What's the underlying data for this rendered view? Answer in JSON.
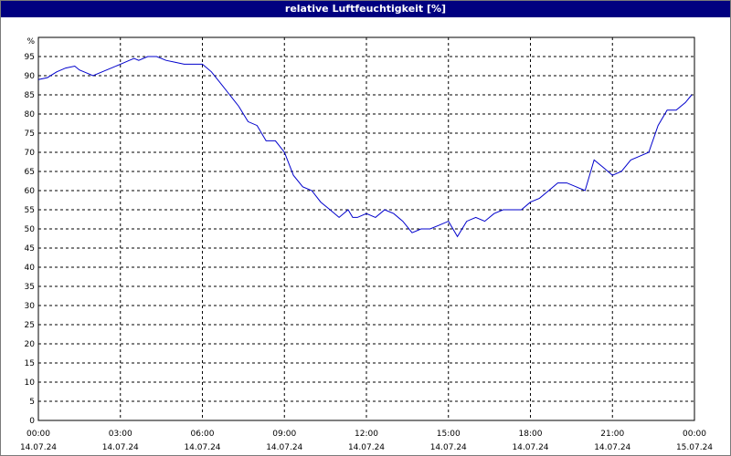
{
  "window": {
    "title": "relative Luftfeuchtigkeit [%]"
  },
  "chart_data": {
    "type": "line",
    "title": "relative Luftfeuchtigkeit [%]",
    "ylabel": "%",
    "xlabel": "",
    "ylim": [
      0,
      100
    ],
    "xlim": [
      0,
      24
    ],
    "grid": true,
    "y_ticks": [
      "0",
      "5",
      "10",
      "15",
      "20",
      "25",
      "30",
      "35",
      "40",
      "45",
      "50",
      "55",
      "60",
      "65",
      "70",
      "75",
      "80",
      "85",
      "90",
      "95"
    ],
    "x_ticks": [
      {
        "time": "00:00",
        "date": "14.07.24"
      },
      {
        "time": "03:00",
        "date": "14.07.24"
      },
      {
        "time": "06:00",
        "date": "14.07.24"
      },
      {
        "time": "09:00",
        "date": "14.07.24"
      },
      {
        "time": "12:00",
        "date": "14.07.24"
      },
      {
        "time": "15:00",
        "date": "14.07.24"
      },
      {
        "time": "18:00",
        "date": "14.07.24"
      },
      {
        "time": "21:00",
        "date": "14.07.24"
      },
      {
        "time": "00:00",
        "date": "15.07.24"
      }
    ],
    "line_color": "#0000cc",
    "series": [
      {
        "x": [
          0,
          0.33,
          0.67,
          1,
          1.33,
          1.5,
          1.67,
          2,
          2.33,
          2.67,
          3,
          3.33,
          3.5,
          3.67,
          4,
          4.33,
          4.67,
          5,
          5.33,
          5.67,
          6,
          6.33,
          6.67,
          7,
          7.33,
          7.67,
          8,
          8.33,
          8.67,
          9,
          9.33,
          9.67,
          10,
          10.33,
          10.67,
          11,
          11.33,
          11.5,
          11.67,
          12,
          12.33,
          12.67,
          13,
          13.33,
          13.67,
          14,
          14.33,
          14.67,
          15,
          15.33,
          15.67,
          16,
          16.33,
          16.67,
          17,
          17.33,
          17.67,
          18,
          18.33,
          18.67,
          19,
          19.33,
          19.67,
          20,
          20.33,
          20.67,
          21,
          21.33,
          21.67,
          22,
          22.33,
          22.67,
          23,
          23.33,
          23.67,
          23.9
        ],
        "y": [
          89,
          89.5,
          91,
          92,
          92.5,
          91.5,
          91,
          90,
          91,
          92,
          93,
          94,
          94.5,
          94,
          95,
          95,
          94,
          93.5,
          93,
          93,
          93,
          91,
          88,
          85,
          82,
          78,
          77,
          73,
          73,
          70,
          64,
          61,
          60,
          57,
          55,
          53,
          55,
          53,
          53,
          54,
          53,
          55,
          54,
          52,
          49,
          50,
          50,
          51,
          52,
          48,
          52,
          53,
          52,
          54,
          55,
          55,
          55,
          57,
          58,
          60,
          62,
          62,
          61,
          60,
          68,
          66,
          64,
          65,
          68,
          69,
          70,
          77,
          81,
          81,
          83,
          85
        ]
      }
    ]
  }
}
